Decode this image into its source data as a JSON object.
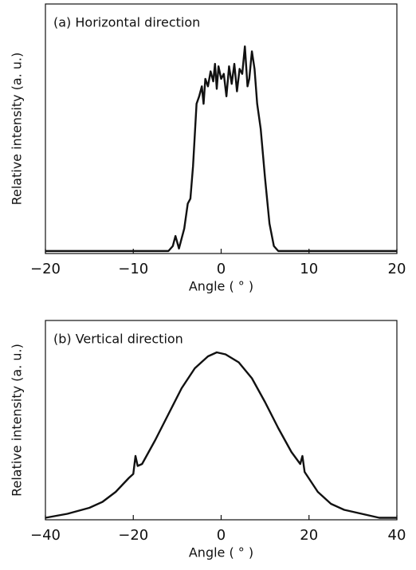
{
  "chart_data": [
    {
      "type": "line",
      "title": "(a) Horizontal direction",
      "x_label": "Angle ( ° )",
      "y_label": "Relative intensity (a. u.)",
      "xlim": [
        -20,
        20
      ],
      "ylim": [
        0,
        1
      ],
      "xticks": [
        {
          "value": -20,
          "label": "−20"
        },
        {
          "value": -10,
          "label": "−10"
        },
        0,
        10,
        20
      ],
      "yticks": [],
      "series": [
        {
          "color": "#111111",
          "x": [
            -20,
            -6,
            -5.5,
            -5.2,
            -4.8,
            -4.2,
            -3.8,
            -3.5,
            -3.2,
            -2.8,
            -2.5,
            -2.2,
            -2,
            -1.8,
            -1.5,
            -1.2,
            -0.9,
            -0.7,
            -0.5,
            -0.3,
            0,
            0.3,
            0.6,
            0.9,
            1.2,
            1.5,
            1.8,
            2.1,
            2.4,
            2.7,
            3,
            3.2,
            3.5,
            3.8,
            4.1,
            4.5,
            5,
            5.5,
            6,
            6.5,
            20
          ],
          "values": [
            0.01,
            0.01,
            0.03,
            0.07,
            0.02,
            0.1,
            0.2,
            0.22,
            0.35,
            0.6,
            0.63,
            0.67,
            0.6,
            0.7,
            0.67,
            0.73,
            0.69,
            0.76,
            0.66,
            0.75,
            0.7,
            0.72,
            0.63,
            0.75,
            0.68,
            0.76,
            0.65,
            0.74,
            0.72,
            0.83,
            0.67,
            0.7,
            0.81,
            0.74,
            0.6,
            0.5,
            0.3,
            0.12,
            0.03,
            0.01,
            0.01
          ]
        }
      ]
    },
    {
      "type": "line",
      "title": "(b) Vertical direction",
      "x_label": "Angle ( ° )",
      "y_label": "Relative intensity (a. u.)",
      "xlim": [
        -40,
        40
      ],
      "ylim": [
        0,
        1
      ],
      "xticks": [
        {
          "value": -40,
          "label": "−40"
        },
        {
          "value": -20,
          "label": "−20"
        },
        0,
        20,
        40
      ],
      "yticks": [],
      "series": [
        {
          "color": "#111111",
          "x": [
            -40,
            -35,
            -30,
            -27,
            -24,
            -21,
            -20,
            -19.5,
            -19,
            -18,
            -15,
            -12,
            -9,
            -6,
            -3,
            -1,
            1,
            4,
            7,
            10,
            13,
            16,
            18,
            18.5,
            19,
            22,
            25,
            28,
            32,
            36,
            40
          ],
          "values": [
            0.01,
            0.03,
            0.06,
            0.09,
            0.14,
            0.21,
            0.23,
            0.32,
            0.27,
            0.28,
            0.4,
            0.53,
            0.66,
            0.76,
            0.82,
            0.84,
            0.83,
            0.79,
            0.71,
            0.59,
            0.46,
            0.34,
            0.28,
            0.32,
            0.24,
            0.14,
            0.08,
            0.05,
            0.03,
            0.01,
            0.01
          ]
        }
      ]
    }
  ]
}
